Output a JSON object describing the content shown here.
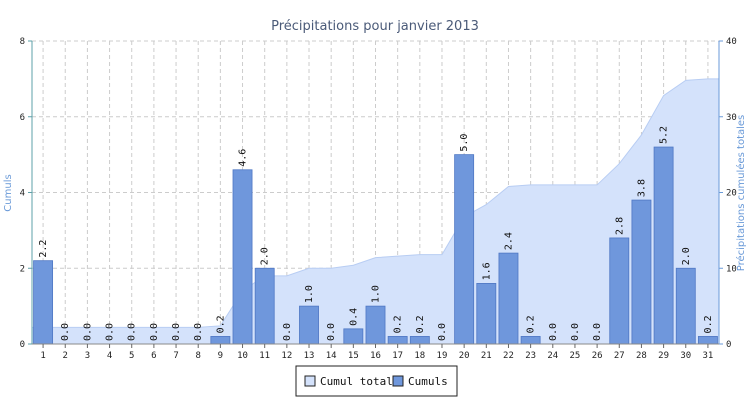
{
  "chart_data": {
    "type": "bar",
    "title": "Précipitations pour janvier 2013",
    "categories": [
      "1",
      "2",
      "3",
      "4",
      "5",
      "6",
      "7",
      "8",
      "9",
      "10",
      "11",
      "12",
      "13",
      "14",
      "15",
      "16",
      "17",
      "18",
      "19",
      "20",
      "21",
      "22",
      "23",
      "24",
      "25",
      "26",
      "27",
      "28",
      "29",
      "30",
      "31"
    ],
    "series": [
      {
        "name": "Cumul total",
        "kind": "area",
        "axis": "right",
        "values": [
          2.2,
          2.2,
          2.2,
          2.2,
          2.2,
          2.2,
          2.2,
          2.2,
          2.4,
          7.0,
          9.0,
          9.0,
          10.0,
          10.0,
          10.4,
          11.4,
          11.6,
          11.8,
          11.8,
          16.8,
          18.4,
          20.8,
          21.0,
          21.0,
          21.0,
          21.0,
          23.8,
          27.6,
          32.8,
          34.8,
          35.0
        ]
      },
      {
        "name": "Cumuls",
        "kind": "bar",
        "axis": "left",
        "values": [
          2.2,
          0.0,
          0.0,
          0.0,
          0.0,
          0.0,
          0.0,
          0.0,
          0.2,
          4.6,
          2.0,
          0.0,
          1.0,
          0.0,
          0.4,
          1.0,
          0.2,
          0.2,
          0.0,
          5.0,
          1.6,
          2.4,
          0.2,
          0.0,
          0.0,
          0.0,
          2.8,
          3.8,
          5.2,
          2.0,
          0.2
        ],
        "labels": [
          "2.2",
          "0.0",
          "0.0",
          "0.0",
          "0.0",
          "0.0",
          "0.0",
          "0.0",
          "0.2",
          "4.6",
          "2.0",
          "0.0",
          "1.0",
          "0.0",
          "0.4",
          "1.0",
          "0.2",
          "0.2",
          "0.0",
          "5.0",
          "1.6",
          "2.4",
          "0.2",
          "0.0",
          "0.0",
          "0.0",
          "2.8",
          "3.8",
          "5.2",
          "2.0",
          "0.2"
        ]
      }
    ],
    "ylabel": "Cumuls",
    "y2label": "Précipitations cumulées totales",
    "ylim": [
      0,
      8
    ],
    "yticks": [
      "0",
      "2",
      "4",
      "6",
      "8"
    ],
    "y2lim": [
      0,
      40
    ],
    "y2ticks": [
      "0",
      "10",
      "20",
      "30",
      "40"
    ],
    "grid": true,
    "legend_position": "bottom-center",
    "colors": {
      "bar_fill": "#6f97dc",
      "bar_stroke": "#4f77c4",
      "area_fill": "#d4e2fb",
      "area_stroke": "#b8cdf3",
      "left_axis": "#5ea0a8",
      "right_axis": "#6a9ad8",
      "title": "#4a5a78",
      "grid": "#cccccc"
    }
  }
}
